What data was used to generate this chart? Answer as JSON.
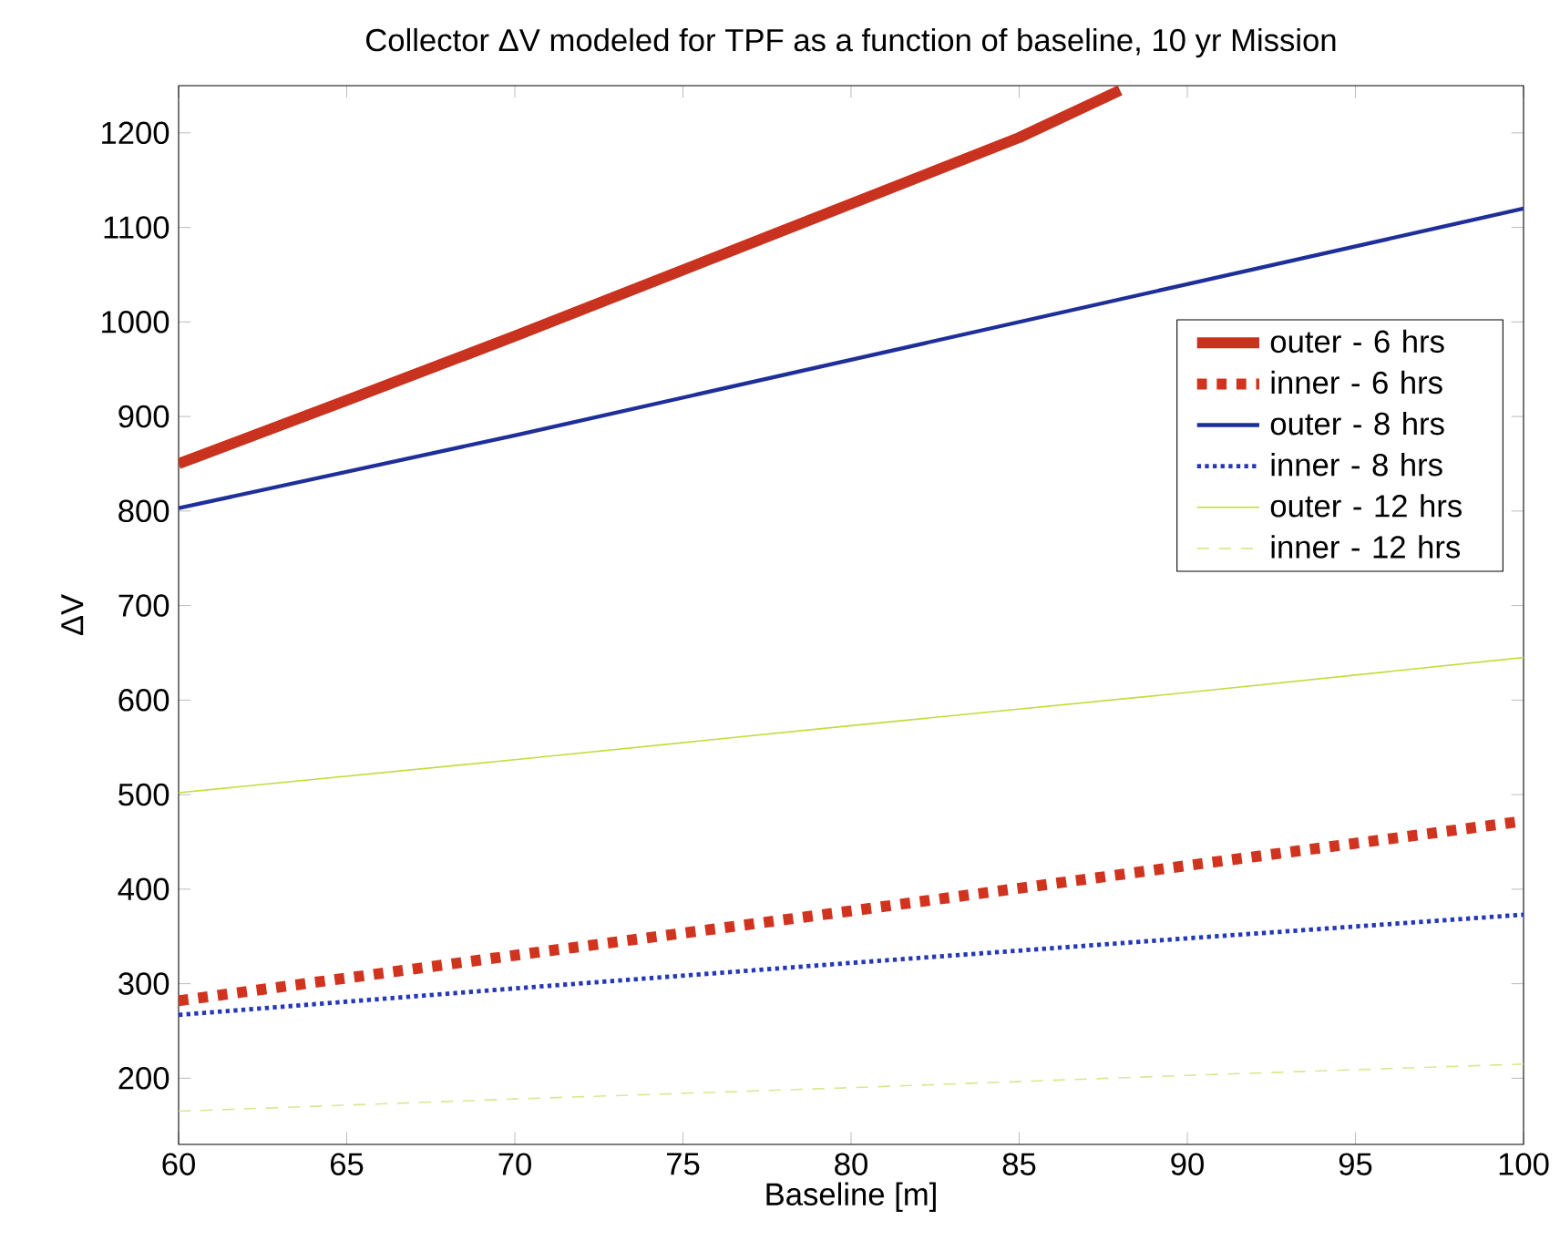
{
  "chart_data": {
    "type": "line",
    "title": "Collector ΔV modeled for TPF as a function of baseline, 10 yr Mission",
    "xlabel": "Baseline [m]",
    "ylabel": "ΔV",
    "xlim": [
      60,
      100
    ],
    "ylim": [
      130,
      1250
    ],
    "xticks": [
      60,
      65,
      70,
      75,
      80,
      85,
      90,
      95,
      100
    ],
    "yticks": [
      200,
      300,
      400,
      500,
      600,
      700,
      800,
      900,
      1000,
      1100,
      1200
    ],
    "grid": false,
    "legend": "right",
    "marker": "none",
    "series": [
      {
        "name": "outer - 6 hrs",
        "color": "#c8321e",
        "line_style": "solid",
        "x": [
          60,
          65,
          70,
          75,
          80,
          85,
          88
        ],
        "values": [
          850,
          917,
          985,
          1055,
          1125,
          1195,
          1245
        ]
      },
      {
        "name": "inner - 6 hrs",
        "color": "#d0341e",
        "line_style": "dotted",
        "x": [
          60,
          70,
          80,
          90,
          100
        ],
        "values": [
          282,
          330,
          377,
          425,
          472
        ]
      },
      {
        "name": "outer - 8 hrs",
        "color": "#1f2f9a",
        "line_style": "solid",
        "x": [
          60,
          70,
          80,
          90,
          100
        ],
        "values": [
          803,
          880,
          960,
          1040,
          1120
        ]
      },
      {
        "name": "inner - 8 hrs",
        "color": "#2438b8",
        "line_style": "dotted",
        "x": [
          60,
          70,
          80,
          90,
          100
        ],
        "values": [
          267,
          295,
          322,
          348,
          373
        ]
      },
      {
        "name": "outer - 12 hrs",
        "color": "#c4dc3c",
        "line_style": "solid",
        "x": [
          60,
          70,
          80,
          90,
          100
        ],
        "values": [
          502,
          537,
          573,
          608,
          645
        ]
      },
      {
        "name": "inner - 12 hrs",
        "color": "#dce690",
        "line_style": "dashed",
        "x": [
          60,
          70,
          80,
          90,
          100
        ],
        "values": [
          165,
          178,
          190,
          203,
          215
        ]
      }
    ]
  }
}
